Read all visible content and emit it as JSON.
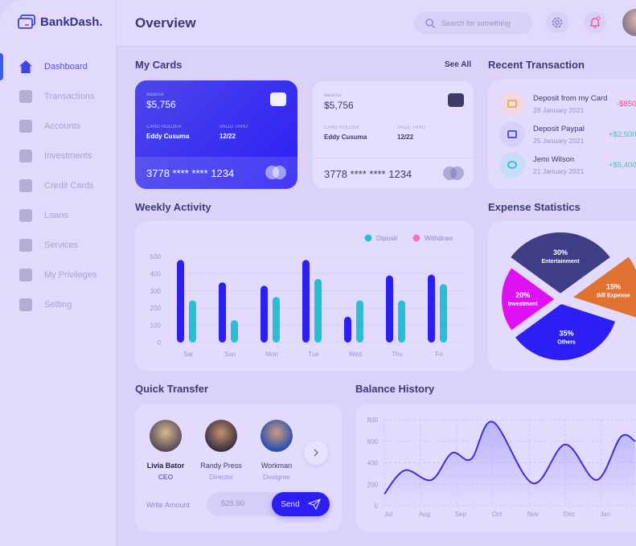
{
  "app": {
    "name": "BankDash."
  },
  "header": {
    "title": "Overview",
    "search_placeholder": "Search for something"
  },
  "sidebar": {
    "items": [
      {
        "label": "Dashboard",
        "icon": "home-icon",
        "active": true
      },
      {
        "label": "Transactions",
        "icon": "transfer-icon"
      },
      {
        "label": "Accounts",
        "icon": "user-icon"
      },
      {
        "label": "Investments",
        "icon": "investment-icon"
      },
      {
        "label": "Credit Cards",
        "icon": "credit-card-icon"
      },
      {
        "label": "Loans",
        "icon": "loan-icon"
      },
      {
        "label": "Services",
        "icon": "tools-icon"
      },
      {
        "label": "My Privileges",
        "icon": "lightbulb-icon"
      },
      {
        "label": "Setting",
        "icon": "gear-icon"
      }
    ]
  },
  "my_cards": {
    "title": "My Cards",
    "see_all": "See All",
    "cards": [
      {
        "balance_label": "Balance",
        "balance": "$5,756",
        "holder_label": "CARD HOLDER",
        "holder": "Eddy Cusuma",
        "valid_label": "VALID THRU",
        "valid": "12/22",
        "number": "3778 **** **** 1234"
      },
      {
        "balance_label": "Balance",
        "balance": "$5,756",
        "holder_label": "CARD HOLDER",
        "holder": "Eddy Cusuma",
        "valid_label": "VALID THRU",
        "valid": "12/22",
        "number": "3778 **** **** 1234"
      }
    ]
  },
  "recent": {
    "title": "Recent Transaction",
    "items": [
      {
        "name": "Deposit from my Card",
        "date": "28 January 2021",
        "amount": "-$850",
        "color": "#ea4a7c",
        "icon": "card-icon"
      },
      {
        "name": "Deposit Paypal",
        "date": "25 January 2021",
        "amount": "+$2,500",
        "color": "#3cc7a5",
        "icon": "paypal-icon"
      },
      {
        "name": "Jemi Wilson",
        "date": "21 January 2021",
        "amount": "+$5,400",
        "color": "#3cc7a5",
        "icon": "coin-icon"
      }
    ]
  },
  "weekly": {
    "title": "Weekly Activity"
  },
  "expense": {
    "title": "Expense Statistics"
  },
  "quick": {
    "title": "Quick Transfer",
    "people": [
      {
        "name": "Livia Bator",
        "role": "CEO"
      },
      {
        "name": "Randy Press",
        "role": "Director"
      },
      {
        "name": "Workman",
        "role": "Designer"
      }
    ],
    "amount_label": "Write Amount",
    "amount": "525.50",
    "send": "Send"
  },
  "balance": {
    "title": "Balance History"
  },
  "chart_data": [
    {
      "type": "bar",
      "categories": [
        "Sat",
        "Sun",
        "Mon",
        "Tue",
        "Wed",
        "Thu",
        "Fri"
      ],
      "ylim": [
        0,
        500
      ],
      "yticks": [
        0,
        100,
        200,
        300,
        400,
        500
      ],
      "grid": true,
      "legend_placement": "top-right",
      "legend": [
        {
          "label": "Diposit",
          "color": "#26bfd6"
        },
        {
          "label": "Withdraw",
          "color": "#e878c0"
        }
      ],
      "series": [
        {
          "color": "#2b1ff5",
          "values": [
            480,
            350,
            330,
            480,
            150,
            390,
            395
          ]
        },
        {
          "color": "#26bfd6",
          "values": [
            245,
            130,
            265,
            370,
            245,
            245,
            340
          ]
        }
      ]
    },
    {
      "type": "pie",
      "slices": [
        {
          "label": "Entertainment",
          "value": 30,
          "color": "#3f3d86"
        },
        {
          "label": "Bill Expense",
          "value": 15,
          "color": "#e27232"
        },
        {
          "label": "Others",
          "value": 35,
          "color": "#2b1ff5"
        },
        {
          "label": "Investment",
          "value": 20,
          "color": "#e010f5"
        }
      ]
    },
    {
      "type": "area",
      "x_labels": [
        "Jul",
        "Aug",
        "Sep",
        "Oct",
        "Nov",
        "Dec",
        "Jan"
      ],
      "ylim": [
        0,
        800
      ],
      "yticks": [
        0,
        200,
        400,
        600,
        800
      ],
      "grid": true,
      "color": "#3a2fe0",
      "points": [
        [
          "Jul 1",
          110
        ],
        [
          "Jul 18",
          330
        ],
        [
          "Aug 10",
          240
        ],
        [
          "Aug 27",
          490
        ],
        [
          "Sep 13",
          435
        ],
        [
          "Oct 1",
          780
        ],
        [
          "Nov 4",
          210
        ],
        [
          "Dec 1",
          570
        ],
        [
          "Dec 27",
          240
        ],
        [
          "Jan 17",
          640
        ],
        [
          "Jan 29",
          600
        ]
      ]
    }
  ]
}
